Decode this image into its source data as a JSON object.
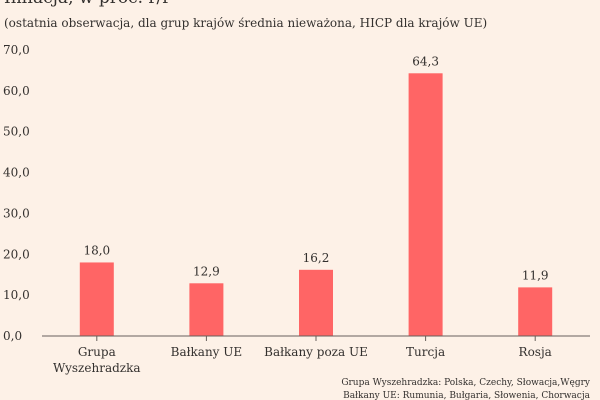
{
  "chart_data": {
    "type": "bar",
    "title": "Inflacja, w proc. r/r",
    "subtitle": "(ostatnia obserwacja, dla grup krajów średnia nieważona, HICP dla krajów UE)",
    "categories": [
      "Grupa Wyszehradzka",
      "Bałkany UE",
      "Bałkany poza UE",
      "Turcja",
      "Rosja"
    ],
    "category_lines": [
      [
        "Grupa",
        "Wyszehradzka"
      ],
      [
        "Bałkany UE"
      ],
      [
        "Bałkany poza UE"
      ],
      [
        "Turcja"
      ],
      [
        "Rosja"
      ]
    ],
    "values": [
      18.0,
      12.9,
      16.2,
      64.3,
      11.9
    ],
    "value_labels": [
      "18,0",
      "12,9",
      "16,2",
      "64,3",
      "11,9"
    ],
    "ylim": [
      0,
      70
    ],
    "yticks": [
      0,
      10,
      20,
      30,
      40,
      50,
      60,
      70
    ],
    "ytick_labels": [
      "0,0",
      "10,0",
      "20,0",
      "30,0",
      "40,0",
      "50,0",
      "60,0",
      "70,0"
    ],
    "xlabel": "",
    "ylabel": "",
    "grid": false,
    "bar_color": "#ff6565",
    "axis_color": "#66605c"
  },
  "notes": [
    "Grupa Wyszehradzka: Polska, Czechy, Słowacja,Węgry",
    "Bałkany UE: Rumunia, Bułgaria, Słowenia, Chorwacja"
  ]
}
